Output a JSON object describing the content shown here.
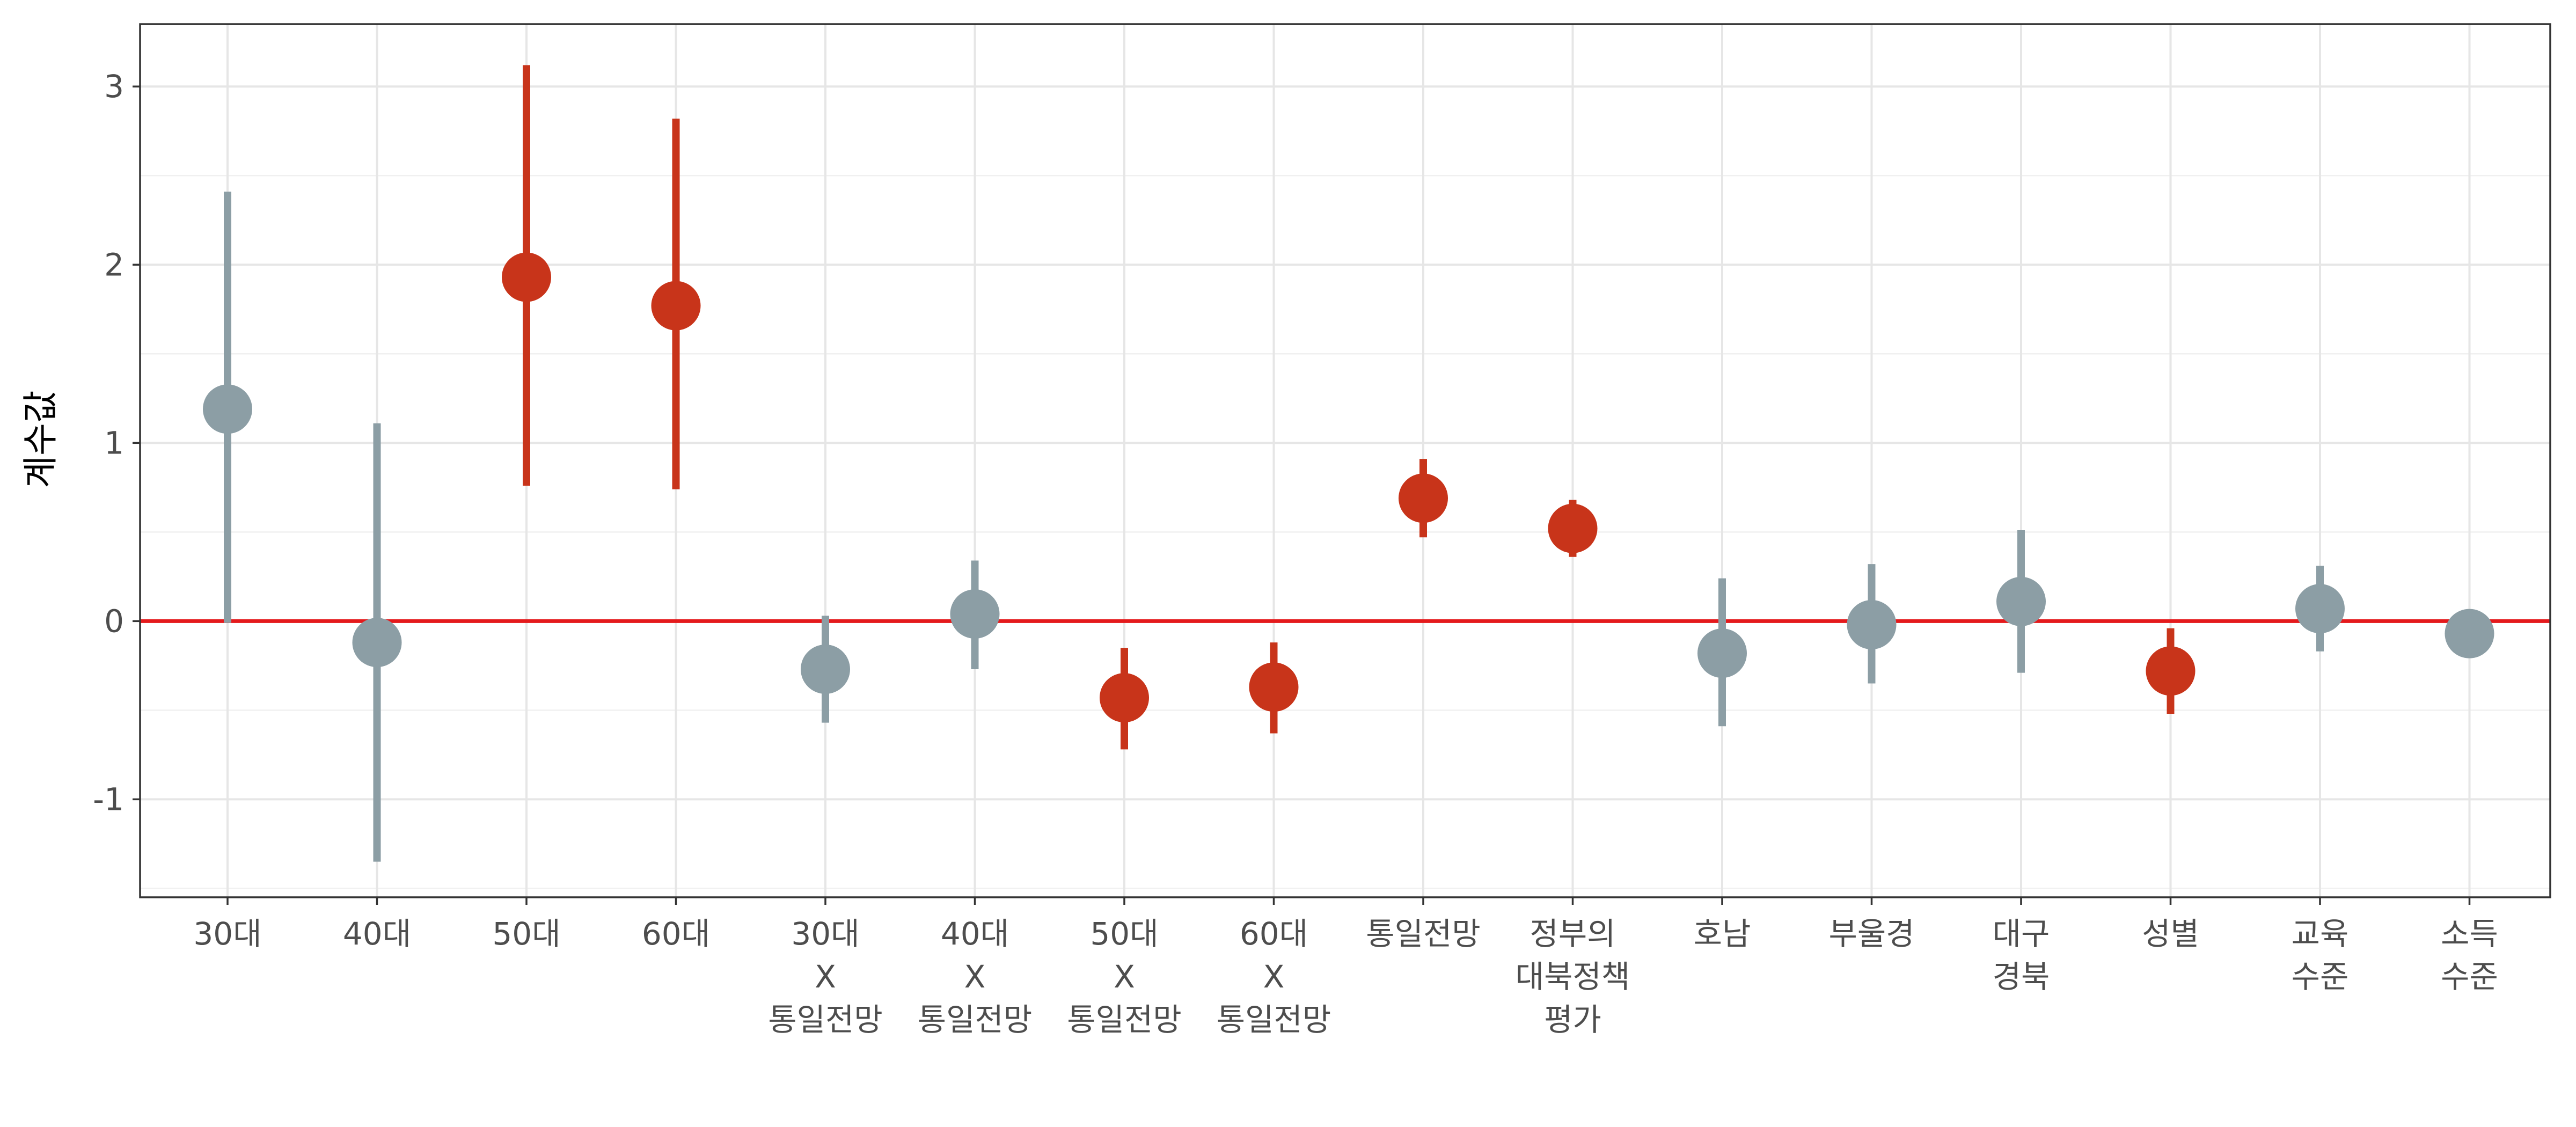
{
  "chart_data": {
    "type": "scatter",
    "subtype": "coefficient-plot",
    "title": "",
    "xlabel": "",
    "ylabel": "계수값",
    "ylim": [
      -1.55,
      3.35
    ],
    "yticks": [
      -1,
      0,
      1,
      2,
      3
    ],
    "ytick_labels": [
      "-1",
      "0",
      "1",
      "2",
      "3"
    ],
    "grid": true,
    "reference_line": {
      "y": 0,
      "color": "#e41a1c"
    },
    "colors": {
      "significant": "#c8341a",
      "not_significant": "#8c9ea5"
    },
    "categories": [
      {
        "lines": [
          "30대"
        ]
      },
      {
        "lines": [
          "40대"
        ]
      },
      {
        "lines": [
          "50대"
        ]
      },
      {
        "lines": [
          "60대"
        ]
      },
      {
        "lines": [
          "30대",
          "X",
          "통일전망"
        ]
      },
      {
        "lines": [
          "40대",
          "X",
          "통일전망"
        ]
      },
      {
        "lines": [
          "50대",
          "X",
          "통일전망"
        ]
      },
      {
        "lines": [
          "60대",
          "X",
          "통일전망"
        ]
      },
      {
        "lines": [
          "통일전망"
        ]
      },
      {
        "lines": [
          "정부의",
          "대북정책",
          "평가"
        ]
      },
      {
        "lines": [
          "호남"
        ]
      },
      {
        "lines": [
          "부울경"
        ]
      },
      {
        "lines": [
          "대구",
          "경북"
        ]
      },
      {
        "lines": [
          "성별"
        ]
      },
      {
        "lines": [
          "교육",
          "수준"
        ]
      },
      {
        "lines": [
          "소득",
          "수준"
        ]
      }
    ],
    "estimates": [
      1.19,
      -0.12,
      1.93,
      1.77,
      -0.27,
      0.04,
      -0.43,
      -0.37,
      0.69,
      0.52,
      -0.18,
      -0.02,
      0.11,
      -0.28,
      0.07,
      -0.07
    ],
    "ci_low": [
      -0.01,
      -1.35,
      0.76,
      0.74,
      -0.57,
      -0.27,
      -0.72,
      -0.63,
      0.47,
      0.36,
      -0.59,
      -0.35,
      -0.29,
      -0.52,
      -0.17,
      -0.07
    ],
    "ci_high": [
      2.41,
      1.11,
      3.12,
      2.82,
      0.03,
      0.34,
      -0.15,
      -0.12,
      0.91,
      0.68,
      0.24,
      0.32,
      0.51,
      -0.04,
      0.31,
      -0.07
    ],
    "significant": [
      false,
      false,
      true,
      true,
      false,
      false,
      true,
      true,
      true,
      true,
      false,
      false,
      false,
      true,
      false,
      false
    ]
  }
}
